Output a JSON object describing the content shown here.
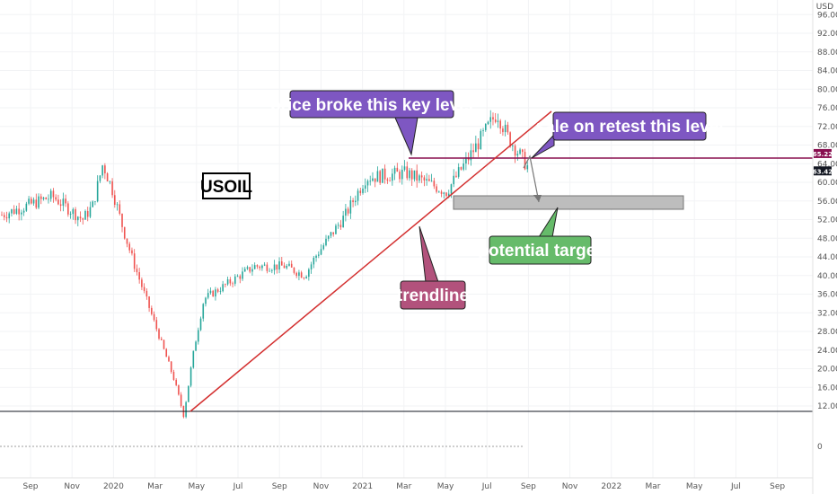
{
  "chart_data": {
    "type": "candlestick",
    "symbol": "USOIL",
    "currency": "USD",
    "y_ticks": [
      "12.00",
      "16.00",
      "20.00",
      "24.00",
      "28.00",
      "32.00",
      "36.00",
      "40.00",
      "44.00",
      "48.00",
      "52.00",
      "56.00",
      "60.00",
      "64.00",
      "68.00",
      "72.00",
      "76.00",
      "80.00",
      "84.00",
      "88.00",
      "92.00",
      "96.00"
    ],
    "ylim": [
      10.0,
      98.0
    ],
    "x_ticks": [
      "Sep",
      "Nov",
      "2020",
      "Mar",
      "May",
      "Jul",
      "Sep",
      "Nov",
      "2021",
      "Mar",
      "May",
      "Jul",
      "Sep",
      "Nov",
      "2022",
      "Mar",
      "May",
      "Jul",
      "Sep"
    ],
    "price_markers": [
      {
        "label": "65.22",
        "value": 65.22,
        "color": "#880e4f"
      },
      {
        "label": "63.42",
        "value": 63.42,
        "color": "#131722"
      }
    ],
    "indicator_zero_label": "0",
    "price_series": {
      "anchor_x": [
        0,
        5,
        8,
        9,
        10,
        11,
        12,
        13,
        17,
        18,
        19,
        20,
        25,
        28,
        30,
        31,
        34,
        36,
        40,
        44,
        47,
        49,
        50,
        52
      ],
      "anchor_close": [
        53,
        57,
        52,
        55,
        64,
        58,
        50,
        43,
        18,
        10,
        24,
        35,
        42,
        42,
        40,
        44,
        53,
        61,
        62,
        58,
        68,
        75,
        70,
        63.4
      ]
    },
    "annotations": {
      "key_level": {
        "label": "price broke this key level",
        "value": 65.22,
        "color": "#7e57c2"
      },
      "retest": {
        "label": "sale on retest this level",
        "color": "#7e57c2"
      },
      "target": {
        "label": "potential target",
        "y_low": 54.5,
        "y_high": 57.0,
        "color": "#66bb6a"
      },
      "trendline": {
        "label": "trendline",
        "color": "#b2527c",
        "line_color": "#d32f2f"
      }
    }
  }
}
